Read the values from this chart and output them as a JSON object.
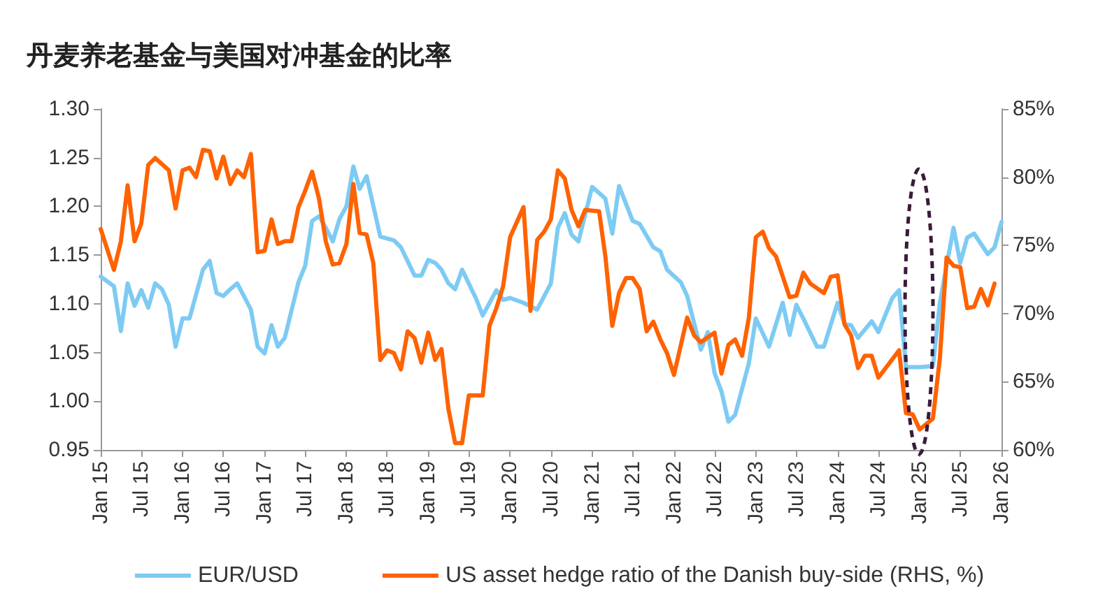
{
  "chart_data": {
    "type": "line",
    "title": "丹麦养老基金与美国对冲基金的比率",
    "xlim": [
      "2015-01",
      "2026-01"
    ],
    "xticks": [
      {
        "value": "2015-01",
        "label": "Jan 15"
      },
      {
        "value": "2015-07",
        "label": "Jul 15"
      },
      {
        "value": "2016-01",
        "label": "Jan 16"
      },
      {
        "value": "2016-07",
        "label": "Jul 16"
      },
      {
        "value": "2017-01",
        "label": "Jan 17"
      },
      {
        "value": "2017-07",
        "label": "Jul 17"
      },
      {
        "value": "2018-01",
        "label": "Jan 18"
      },
      {
        "value": "2018-07",
        "label": "Jul 18"
      },
      {
        "value": "2019-01",
        "label": "Jan 19"
      },
      {
        "value": "2019-07",
        "label": "Jul 19"
      },
      {
        "value": "2020-01",
        "label": "Jan 20"
      },
      {
        "value": "2020-07",
        "label": "Jul 20"
      },
      {
        "value": "2021-01",
        "label": "Jan 21"
      },
      {
        "value": "2021-07",
        "label": "Jul 21"
      },
      {
        "value": "2022-01",
        "label": "Jan 22"
      },
      {
        "value": "2022-07",
        "label": "Jul 22"
      },
      {
        "value": "2023-01",
        "label": "Jan 23"
      },
      {
        "value": "2023-07",
        "label": "Jul 23"
      },
      {
        "value": "2024-01",
        "label": "Jan 24"
      },
      {
        "value": "2024-07",
        "label": "Jul 24"
      },
      {
        "value": "2025-01",
        "label": "Jan 25"
      },
      {
        "value": "2025-07",
        "label": "Jul 25"
      },
      {
        "value": "2026-01",
        "label": "Jan 26"
      }
    ],
    "ylim": [
      0.95,
      1.3
    ],
    "yticks": [
      {
        "value": 0.95,
        "label": "0.95"
      },
      {
        "value": 1.0,
        "label": "1.00"
      },
      {
        "value": 1.05,
        "label": "1.05"
      },
      {
        "value": 1.1,
        "label": "1.10"
      },
      {
        "value": 1.15,
        "label": "1.15"
      },
      {
        "value": 1.2,
        "label": "1.20"
      },
      {
        "value": 1.25,
        "label": "1.25"
      },
      {
        "value": 1.3,
        "label": "1.30"
      }
    ],
    "y2lim": [
      60,
      85
    ],
    "y2ticks": [
      {
        "value": 60,
        "label": "60%"
      },
      {
        "value": 65,
        "label": "65%"
      },
      {
        "value": 70,
        "label": "70%"
      },
      {
        "value": 75,
        "label": "75%"
      },
      {
        "value": 80,
        "label": "80%"
      },
      {
        "value": 85,
        "label": "85%"
      }
    ],
    "grid": false,
    "legend": "bottom",
    "marker": "none",
    "line_style": "solid",
    "series": [
      {
        "name": "EUR/USD",
        "color": "#7dcbf3",
        "x": [
          "2015-01",
          "2015-03",
          "2015-04",
          "2015-05",
          "2015-06",
          "2015-07",
          "2015-08",
          "2015-09",
          "2015-10",
          "2015-11",
          "2015-12",
          "2016-01",
          "2016-02",
          "2016-04",
          "2016-05",
          "2016-06",
          "2016-07",
          "2016-08",
          "2016-09",
          "2016-11",
          "2016-12",
          "2017-01",
          "2017-02",
          "2017-03",
          "2017-04",
          "2017-06",
          "2017-07",
          "2017-08",
          "2017-09",
          "2017-10",
          "2017-11",
          "2017-12",
          "2018-01",
          "2018-02",
          "2018-03",
          "2018-04",
          "2018-06",
          "2018-08",
          "2018-09",
          "2018-11",
          "2018-12",
          "2019-01",
          "2019-02",
          "2019-03",
          "2019-04",
          "2019-05",
          "2019-06",
          "2019-08",
          "2019-09",
          "2019-11",
          "2019-12",
          "2020-01",
          "2020-03",
          "2020-05",
          "2020-07",
          "2020-08",
          "2020-09",
          "2020-10",
          "2020-11",
          "2021-01",
          "2021-03",
          "2021-04",
          "2021-05",
          "2021-07",
          "2021-08",
          "2021-10",
          "2021-11",
          "2021-12",
          "2022-02",
          "2022-03",
          "2022-05",
          "2022-06",
          "2022-07",
          "2022-08",
          "2022-09",
          "2022-10",
          "2022-12",
          "2023-01",
          "2023-03",
          "2023-05",
          "2023-06",
          "2023-07",
          "2023-08",
          "2023-10",
          "2023-11",
          "2024-01",
          "2024-02",
          "2024-03",
          "2024-04",
          "2024-06",
          "2024-07",
          "2024-09",
          "2024-10",
          "2024-11",
          "2025-01",
          "2025-03",
          "2025-04",
          "2025-06",
          "2025-07",
          "2025-08",
          "2025-09",
          "2025-11",
          "2025-12",
          "2026-01"
        ],
        "values": [
          1.128,
          1.118,
          1.072,
          1.121,
          1.098,
          1.114,
          1.096,
          1.121,
          1.115,
          1.099,
          1.056,
          1.085,
          1.085,
          1.135,
          1.144,
          1.111,
          1.108,
          1.115,
          1.121,
          1.094,
          1.056,
          1.049,
          1.078,
          1.056,
          1.065,
          1.122,
          1.139,
          1.185,
          1.19,
          1.178,
          1.164,
          1.187,
          1.2,
          1.241,
          1.218,
          1.231,
          1.169,
          1.165,
          1.158,
          1.129,
          1.129,
          1.145,
          1.142,
          1.135,
          1.121,
          1.115,
          1.135,
          1.106,
          1.088,
          1.114,
          1.104,
          1.106,
          1.101,
          1.094,
          1.121,
          1.178,
          1.193,
          1.171,
          1.164,
          1.22,
          1.208,
          1.172,
          1.221,
          1.185,
          1.182,
          1.158,
          1.154,
          1.135,
          1.122,
          1.108,
          1.053,
          1.071,
          1.029,
          1.01,
          0.979,
          0.986,
          1.039,
          1.085,
          1.056,
          1.101,
          1.068,
          1.099,
          1.085,
          1.056,
          1.056,
          1.101,
          1.079,
          1.078,
          1.065,
          1.082,
          1.071,
          1.106,
          1.114,
          1.035,
          1.035,
          1.036,
          1.101,
          1.178,
          1.142,
          1.168,
          1.172,
          1.151,
          1.158,
          1.184
        ]
      },
      {
        "name": "US asset hedge ratio of the Danish buy-side (RHS, %)",
        "color": "#ff6200",
        "axis": "y2",
        "x": [
          "2015-01",
          "2015-03",
          "2015-04",
          "2015-05",
          "2015-06",
          "2015-07",
          "2015-08",
          "2015-09",
          "2015-11",
          "2015-12",
          "2016-01",
          "2016-02",
          "2016-03",
          "2016-04",
          "2016-05",
          "2016-06",
          "2016-07",
          "2016-08",
          "2016-09",
          "2016-10",
          "2016-11",
          "2016-12",
          "2017-01",
          "2017-02",
          "2017-03",
          "2017-04",
          "2017-05",
          "2017-06",
          "2017-07",
          "2017-08",
          "2017-09",
          "2017-10",
          "2017-11",
          "2017-12",
          "2018-01",
          "2018-02",
          "2018-03",
          "2018-04",
          "2018-05",
          "2018-06",
          "2018-07",
          "2018-08",
          "2018-09",
          "2018-10",
          "2018-11",
          "2018-12",
          "2019-01",
          "2019-02",
          "2019-03",
          "2019-04",
          "2019-05",
          "2019-06",
          "2019-07",
          "2019-09",
          "2019-10",
          "2019-11",
          "2019-12",
          "2020-01",
          "2020-03",
          "2020-04",
          "2020-05",
          "2020-06",
          "2020-07",
          "2020-08",
          "2020-09",
          "2020-10",
          "2020-11",
          "2020-12",
          "2021-02",
          "2021-03",
          "2021-04",
          "2021-05",
          "2021-06",
          "2021-07",
          "2021-08",
          "2021-09",
          "2021-10",
          "2021-11",
          "2021-12",
          "2022-01",
          "2022-03",
          "2022-04",
          "2022-05",
          "2022-07",
          "2022-08",
          "2022-09",
          "2022-10",
          "2022-11",
          "2022-12",
          "2023-01",
          "2023-02",
          "2023-03",
          "2023-04",
          "2023-06",
          "2023-07",
          "2023-08",
          "2023-09",
          "2023-11",
          "2023-12",
          "2024-01",
          "2024-02",
          "2024-03",
          "2024-04",
          "2024-05",
          "2024-06",
          "2024-07",
          "2024-10",
          "2024-11",
          "2024-12",
          "2025-01",
          "2025-03",
          "2025-04",
          "2025-05",
          "2025-06",
          "2025-07",
          "2025-08",
          "2025-09",
          "2025-10",
          "2025-11",
          "2025-12"
        ],
        "values": [
          76.2,
          73.2,
          75.3,
          79.4,
          75.3,
          76.6,
          80.9,
          81.4,
          80.5,
          77.7,
          80.5,
          80.7,
          80.0,
          82.0,
          81.9,
          79.9,
          81.5,
          79.5,
          80.5,
          80.0,
          81.7,
          74.5,
          74.6,
          76.9,
          75.1,
          75.3,
          75.3,
          77.8,
          79.0,
          80.4,
          78.4,
          75.3,
          73.6,
          73.7,
          75.1,
          79.5,
          75.9,
          75.8,
          73.7,
          66.6,
          67.3,
          67.1,
          65.9,
          68.7,
          68.2,
          66.4,
          68.6,
          66.6,
          67.4,
          63.0,
          60.5,
          60.5,
          64.0,
          64.0,
          69.1,
          70.4,
          72.0,
          75.6,
          77.8,
          70.2,
          75.4,
          76.0,
          76.9,
          80.5,
          79.9,
          77.6,
          76.4,
          77.6,
          77.5,
          74.2,
          69.1,
          71.5,
          72.6,
          72.6,
          71.8,
          68.7,
          69.4,
          68.1,
          67.1,
          65.5,
          69.7,
          68.4,
          67.9,
          68.6,
          65.6,
          67.7,
          68.1,
          66.9,
          69.7,
          75.6,
          76.0,
          74.8,
          74.2,
          71.2,
          71.3,
          73.0,
          72.2,
          71.5,
          72.7,
          72.8,
          69.2,
          68.4,
          66.0,
          66.9,
          66.9,
          65.3,
          67.3,
          62.7,
          62.6,
          61.5,
          62.3,
          66.7,
          74.1,
          73.5,
          73.4,
          70.4,
          70.5,
          71.8,
          70.6,
          72.2
        ]
      }
    ]
  }
}
